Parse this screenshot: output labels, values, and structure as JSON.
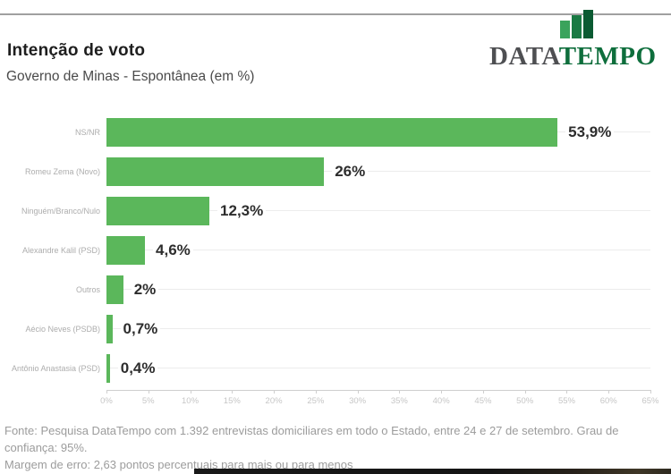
{
  "header": {
    "title": "Intenção de voto",
    "subtitle": "Governo de Minas - Espontânea (em %)"
  },
  "logo": {
    "name": "DataTempo",
    "text_primary": "DATA",
    "text_secondary": "TEMPO",
    "primary_color": "#4e4f52",
    "secondary_color": "#0e6e3c",
    "icon": "bar-chart-icon",
    "icon_bar_colors": [
      "#3aa35c",
      "#1a7a44",
      "#0b5a32"
    ],
    "icon_bar_heights": [
      20,
      26,
      32
    ]
  },
  "chart_data": {
    "type": "bar",
    "orientation": "horizontal",
    "title": "Intenção de voto",
    "subtitle": "Governo de Minas - Espontânea (em %)",
    "categories": [
      "NS/NR",
      "Romeu Zema (Novo)",
      "Ninguém/Branco/Nulo",
      "Alexandre Kalil (PSD)",
      "Outros",
      "Aécio Neves (PSDB)",
      "Antônio Anastasia (PSD)"
    ],
    "values": [
      53.9,
      26,
      12.3,
      4.6,
      2,
      0.7,
      0.4
    ],
    "value_labels": [
      "53,9%",
      "26%",
      "12,3%",
      "4,6%",
      "2%",
      "0,7%",
      "0,4%"
    ],
    "xlim": [
      0,
      65
    ],
    "x_tick_step": 5,
    "x_tick_labels": [
      "0%",
      "5%",
      "10%",
      "15%",
      "20%",
      "25%",
      "30%",
      "35%",
      "40%",
      "45%",
      "50%",
      "55%",
      "60%",
      "65%"
    ],
    "bar_color": "#5bb75b",
    "grid": true,
    "legend": false
  },
  "footer": {
    "line1": "Fonte: Pesquisa DataTempo com 1.392 entrevistas domiciliares em todo o Estado, entre 24 e 27 de setembro. Grau de confiança: 95%.",
    "line2": "Margem de erro: 2,63 pontos percentuais para mais ou para menos"
  }
}
